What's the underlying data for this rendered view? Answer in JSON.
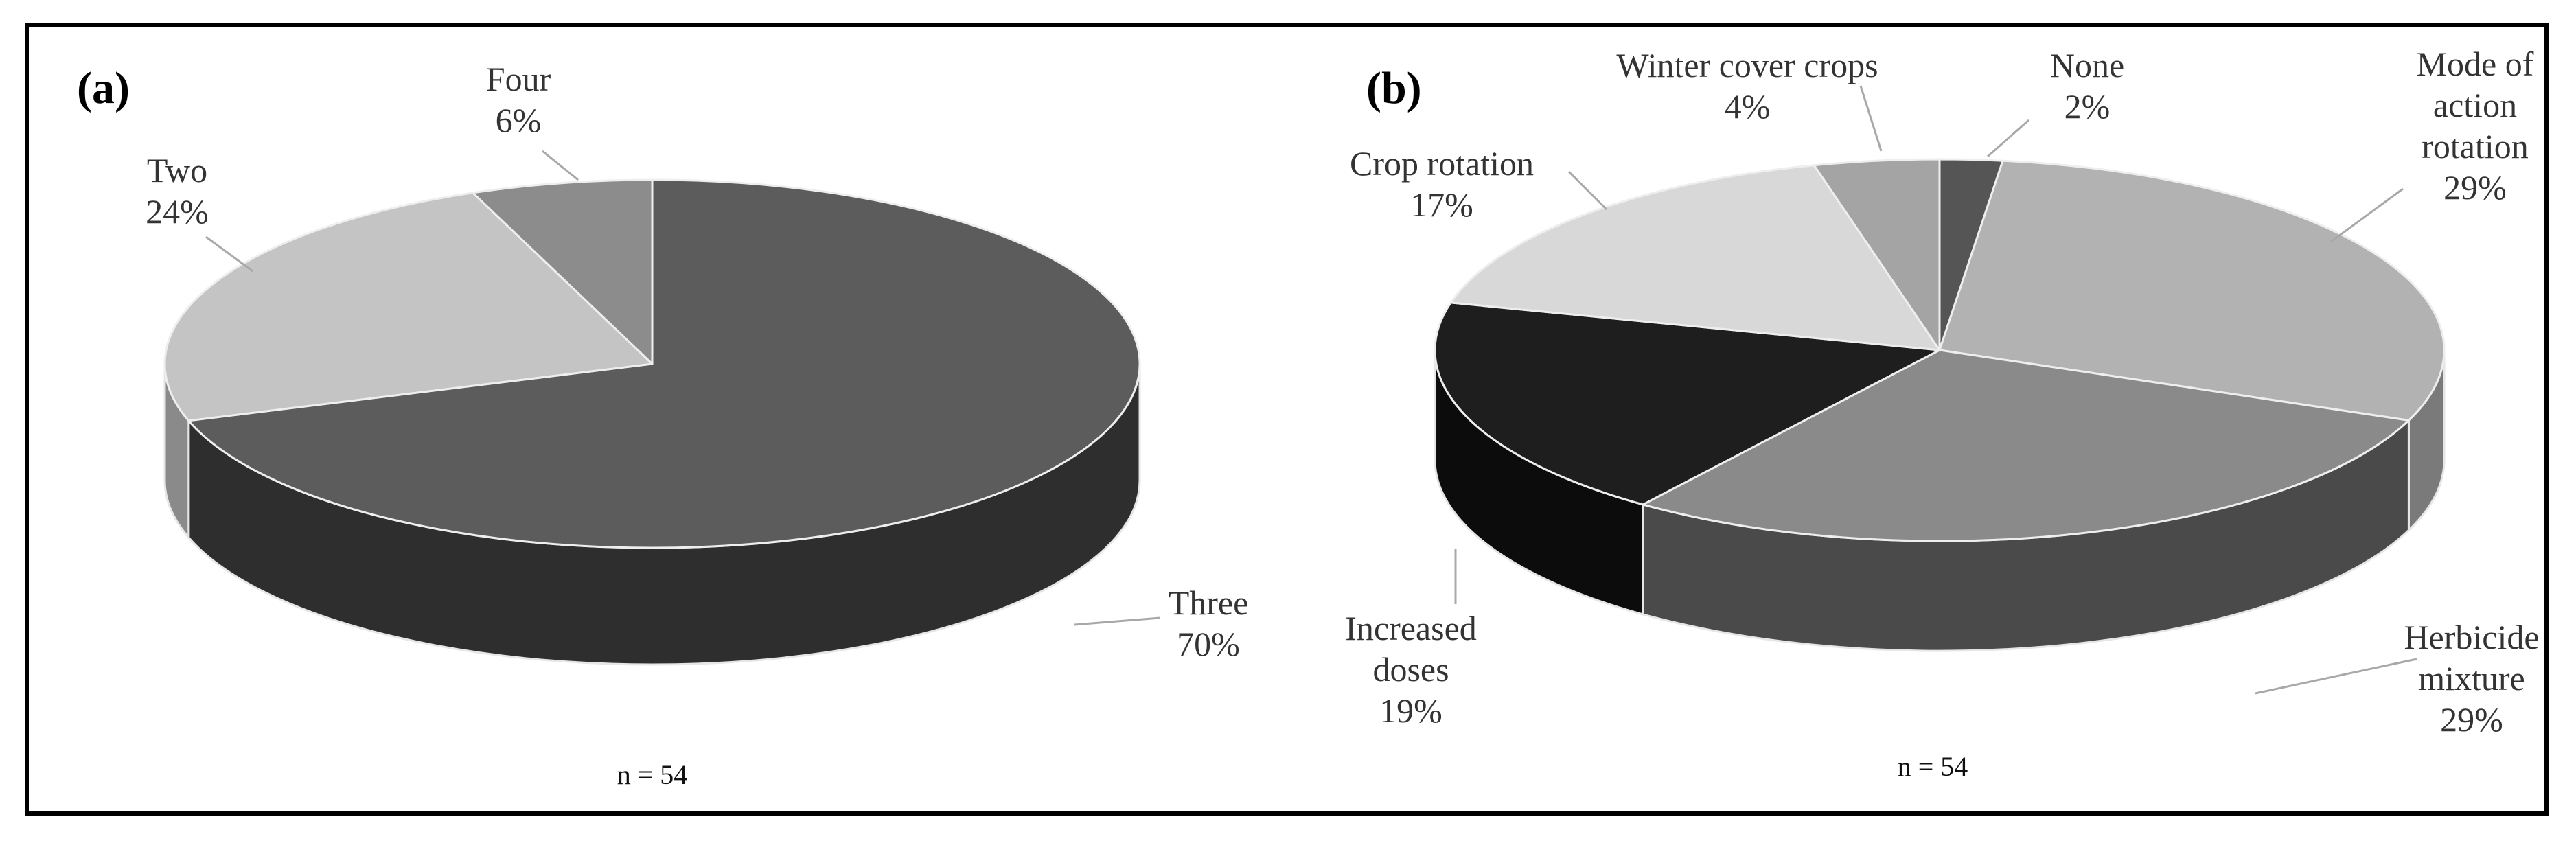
{
  "chart_data": [
    {
      "type": "pie",
      "panel_label": "(a)",
      "sample_size": "n = 54",
      "slices": [
        {
          "name": "Three",
          "label_lines": [
            "Three"
          ],
          "percent_label": "70%",
          "value": 70,
          "color": "#5c5c5c",
          "side_color": "#2e2e2e"
        },
        {
          "name": "Two",
          "label_lines": [
            "Two"
          ],
          "percent_label": "24%",
          "value": 24,
          "color": "#c4c4c4",
          "side_color": "#8a8a8a"
        },
        {
          "name": "Four",
          "label_lines": [
            "Four"
          ],
          "percent_label": "6%",
          "value": 6,
          "color": "#8c8c8c",
          "side_color": "#5a5a5a"
        }
      ]
    },
    {
      "type": "pie",
      "panel_label": "(b)",
      "sample_size": "n = 54",
      "slices": [
        {
          "name": "None",
          "label_lines": [
            "None"
          ],
          "percent_label": "2%",
          "value": 2,
          "color": "#555555",
          "side_color": "#333333"
        },
        {
          "name": "Mode of action rotation",
          "label_lines": [
            "Mode of",
            "action",
            "rotation"
          ],
          "percent_label": "29%",
          "value": 29,
          "color": "#b2b2b2",
          "side_color": "#7a7a7a"
        },
        {
          "name": "Herbicide mixture",
          "label_lines": [
            "Herbicide",
            "mixture"
          ],
          "percent_label": "29%",
          "value": 29,
          "color": "#8a8a8a",
          "side_color": "#4a4a4a"
        },
        {
          "name": "Increased doses",
          "label_lines": [
            "Increased",
            "doses"
          ],
          "percent_label": "19%",
          "value": 19,
          "color": "#1e1e1e",
          "side_color": "#0c0c0c"
        },
        {
          "name": "Crop rotation",
          "label_lines": [
            "Crop rotation"
          ],
          "percent_label": "17%",
          "value": 17,
          "color": "#d8d8d8",
          "side_color": "#9e9e9e"
        },
        {
          "name": "Winter cover crops",
          "label_lines": [
            "Winter cover crops"
          ],
          "percent_label": "4%",
          "value": 4,
          "color": "#a4a4a4",
          "side_color": "#6a6a6a"
        }
      ]
    }
  ]
}
